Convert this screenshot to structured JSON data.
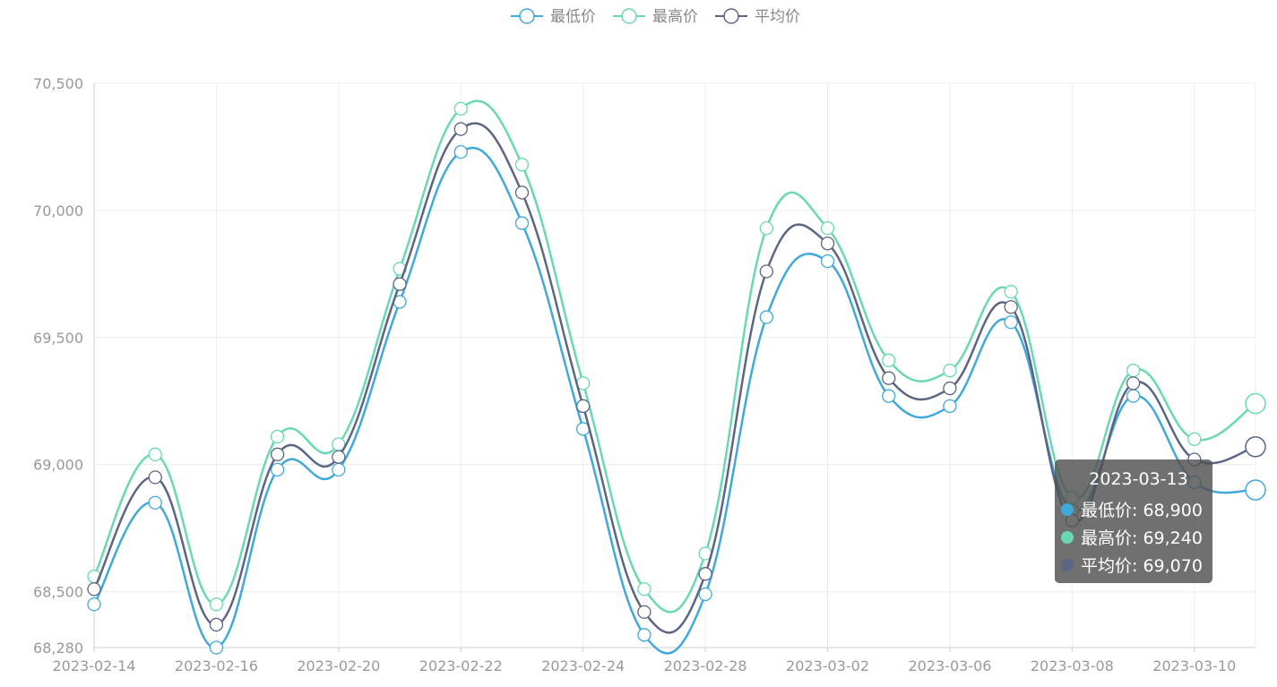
{
  "chart_data": {
    "type": "line",
    "smooth": true,
    "x": [
      "2023-02-14",
      "2023-02-15",
      "2023-02-16",
      "2023-02-17",
      "2023-02-20",
      "2023-02-21",
      "2023-02-22",
      "2023-02-23",
      "2023-02-24",
      "2023-02-27",
      "2023-02-28",
      "2023-03-01",
      "2023-03-02",
      "2023-03-03",
      "2023-03-06",
      "2023-03-07",
      "2023-03-08",
      "2023-03-09",
      "2023-03-10",
      "2023-03-13"
    ],
    "x_tick_labels": [
      "2023-02-14",
      "2023-02-16",
      "2023-02-20",
      "2023-02-22",
      "2023-02-24",
      "2023-02-28",
      "2023-03-02",
      "2023-03-06",
      "2023-03-08",
      "2023-03-10"
    ],
    "ylim": [
      68280,
      70500
    ],
    "y_tick_labels": [
      "70,500",
      "70,000",
      "69,500",
      "69,000",
      "68,500",
      "68,280"
    ],
    "y_tick_values": [
      70500,
      70000,
      69500,
      69000,
      68500,
      68280
    ],
    "grid": true,
    "legend_position": "top-center",
    "series": [
      {
        "name": "最低价",
        "color": "#3fa9d9",
        "values": [
          68450,
          68850,
          68280,
          68980,
          68980,
          69640,
          70230,
          69950,
          69140,
          68330,
          68490,
          69580,
          69800,
          69270,
          69230,
          69560,
          68820,
          69270,
          68930,
          68900
        ]
      },
      {
        "name": "最高价",
        "color": "#6ad8b4",
        "values": [
          68560,
          69040,
          68450,
          69110,
          69080,
          69770,
          70400,
          70180,
          69320,
          68510,
          68650,
          69930,
          69930,
          69410,
          69370,
          69680,
          68870,
          69370,
          69100,
          69240
        ]
      },
      {
        "name": "平均价",
        "color": "#5c6583",
        "values": [
          68510,
          68950,
          68370,
          69040,
          69030,
          69710,
          70320,
          70070,
          69230,
          68420,
          68570,
          69760,
          69870,
          69340,
          69300,
          69620,
          68780,
          69320,
          69020,
          69070
        ]
      }
    ]
  },
  "tooltip": {
    "date": "2023-03-13",
    "rows": [
      {
        "label": "最低价: 68,900",
        "color": "#3fa9d9"
      },
      {
        "label": "最高价: 69,240",
        "color": "#6ad8b4"
      },
      {
        "label": "平均价: 69,070",
        "color": "#5c6583"
      }
    ]
  }
}
